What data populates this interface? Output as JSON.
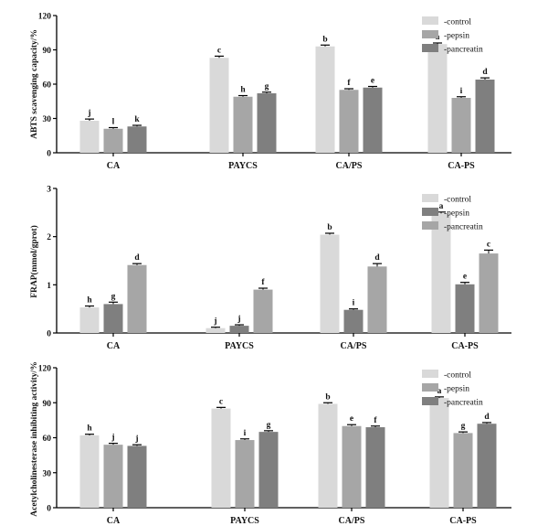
{
  "chart_data": [
    {
      "type": "bar",
      "ylabel": "ABTS scavenging capacity/%",
      "ylim": [
        0,
        120
      ],
      "yticks": [
        "0",
        "30",
        "60",
        "90",
        "120"
      ],
      "categories": [
        "CA",
        "PAYCS",
        "CA/PS",
        "CA-PS"
      ],
      "legend_position": "top-right",
      "series": [
        {
          "name": "-control",
          "color": "#d9d9d9",
          "values": [
            28,
            83,
            93,
            95
          ],
          "errors": [
            1.5,
            1.5,
            1.2,
            1.0
          ],
          "labels": [
            "j",
            "c",
            "b",
            "a"
          ]
        },
        {
          "name": "-pepsin",
          "color": "#a6a6a6",
          "values": [
            21,
            49,
            55,
            48
          ],
          "errors": [
            1.0,
            1.0,
            1.0,
            1.0
          ],
          "labels": [
            "l",
            "h",
            "f",
            "i"
          ]
        },
        {
          "name": "-pancreatin",
          "color": "#7f7f7f",
          "values": [
            23,
            52,
            57,
            64
          ],
          "errors": [
            1.0,
            1.0,
            1.0,
            1.5
          ],
          "labels": [
            "k",
            "g",
            "e",
            "d"
          ]
        }
      ]
    },
    {
      "type": "bar",
      "ylabel": "FRAP(mmol/gprot)",
      "ylim": [
        0,
        3
      ],
      "yticks": [
        "0",
        "1",
        "2",
        "3"
      ],
      "categories": [
        "CA",
        "PAYCS",
        "CA/PS",
        "CA-PS"
      ],
      "legend_position": "top-right",
      "series": [
        {
          "name": "-control",
          "color": "#d9d9d9",
          "values": [
            0.53,
            0.1,
            2.04,
            2.48
          ],
          "errors": [
            0.03,
            0.02,
            0.03,
            0.03
          ],
          "labels": [
            "h",
            "j",
            "b",
            "a"
          ]
        },
        {
          "name": "-pepsin",
          "color": "#7f7f7f",
          "values": [
            0.6,
            0.15,
            0.48,
            1.01
          ],
          "errors": [
            0.04,
            0.02,
            0.02,
            0.04
          ],
          "labels": [
            "g",
            "j",
            "i",
            "e"
          ]
        },
        {
          "name": "-pancreatin",
          "color": "#a6a6a6",
          "values": [
            1.41,
            0.9,
            1.38,
            1.65
          ],
          "errors": [
            0.03,
            0.03,
            0.06,
            0.07
          ],
          "labels": [
            "d",
            "f",
            "d",
            "c"
          ]
        }
      ]
    },
    {
      "type": "bar",
      "ylabel": "Acetylcholinesterase inhibiting activity/%",
      "ylim": [
        0,
        120
      ],
      "yticks": [
        "0",
        "30",
        "60",
        "90",
        "120"
      ],
      "categories": [
        "CA",
        "PAYCS",
        "CA/PS",
        "CA-PS"
      ],
      "legend_position": "top-right",
      "series": [
        {
          "name": "-control",
          "color": "#d9d9d9",
          "values": [
            62,
            85,
            89,
            94
          ],
          "errors": [
            1.0,
            1.0,
            1.0,
            1.0
          ],
          "labels": [
            "h",
            "c",
            "b",
            "a"
          ]
        },
        {
          "name": "-pepsin",
          "color": "#a6a6a6",
          "values": [
            54,
            58,
            70,
            64
          ],
          "errors": [
            1.2,
            1.0,
            1.2,
            1.0
          ],
          "labels": [
            "j",
            "i",
            "e",
            "g"
          ]
        },
        {
          "name": "-pancreatin",
          "color": "#7f7f7f",
          "values": [
            53,
            65,
            69,
            72
          ],
          "errors": [
            1.0,
            1.0,
            1.0,
            1.0
          ],
          "labels": [
            "j",
            "g",
            "f",
            "d"
          ]
        }
      ]
    }
  ]
}
